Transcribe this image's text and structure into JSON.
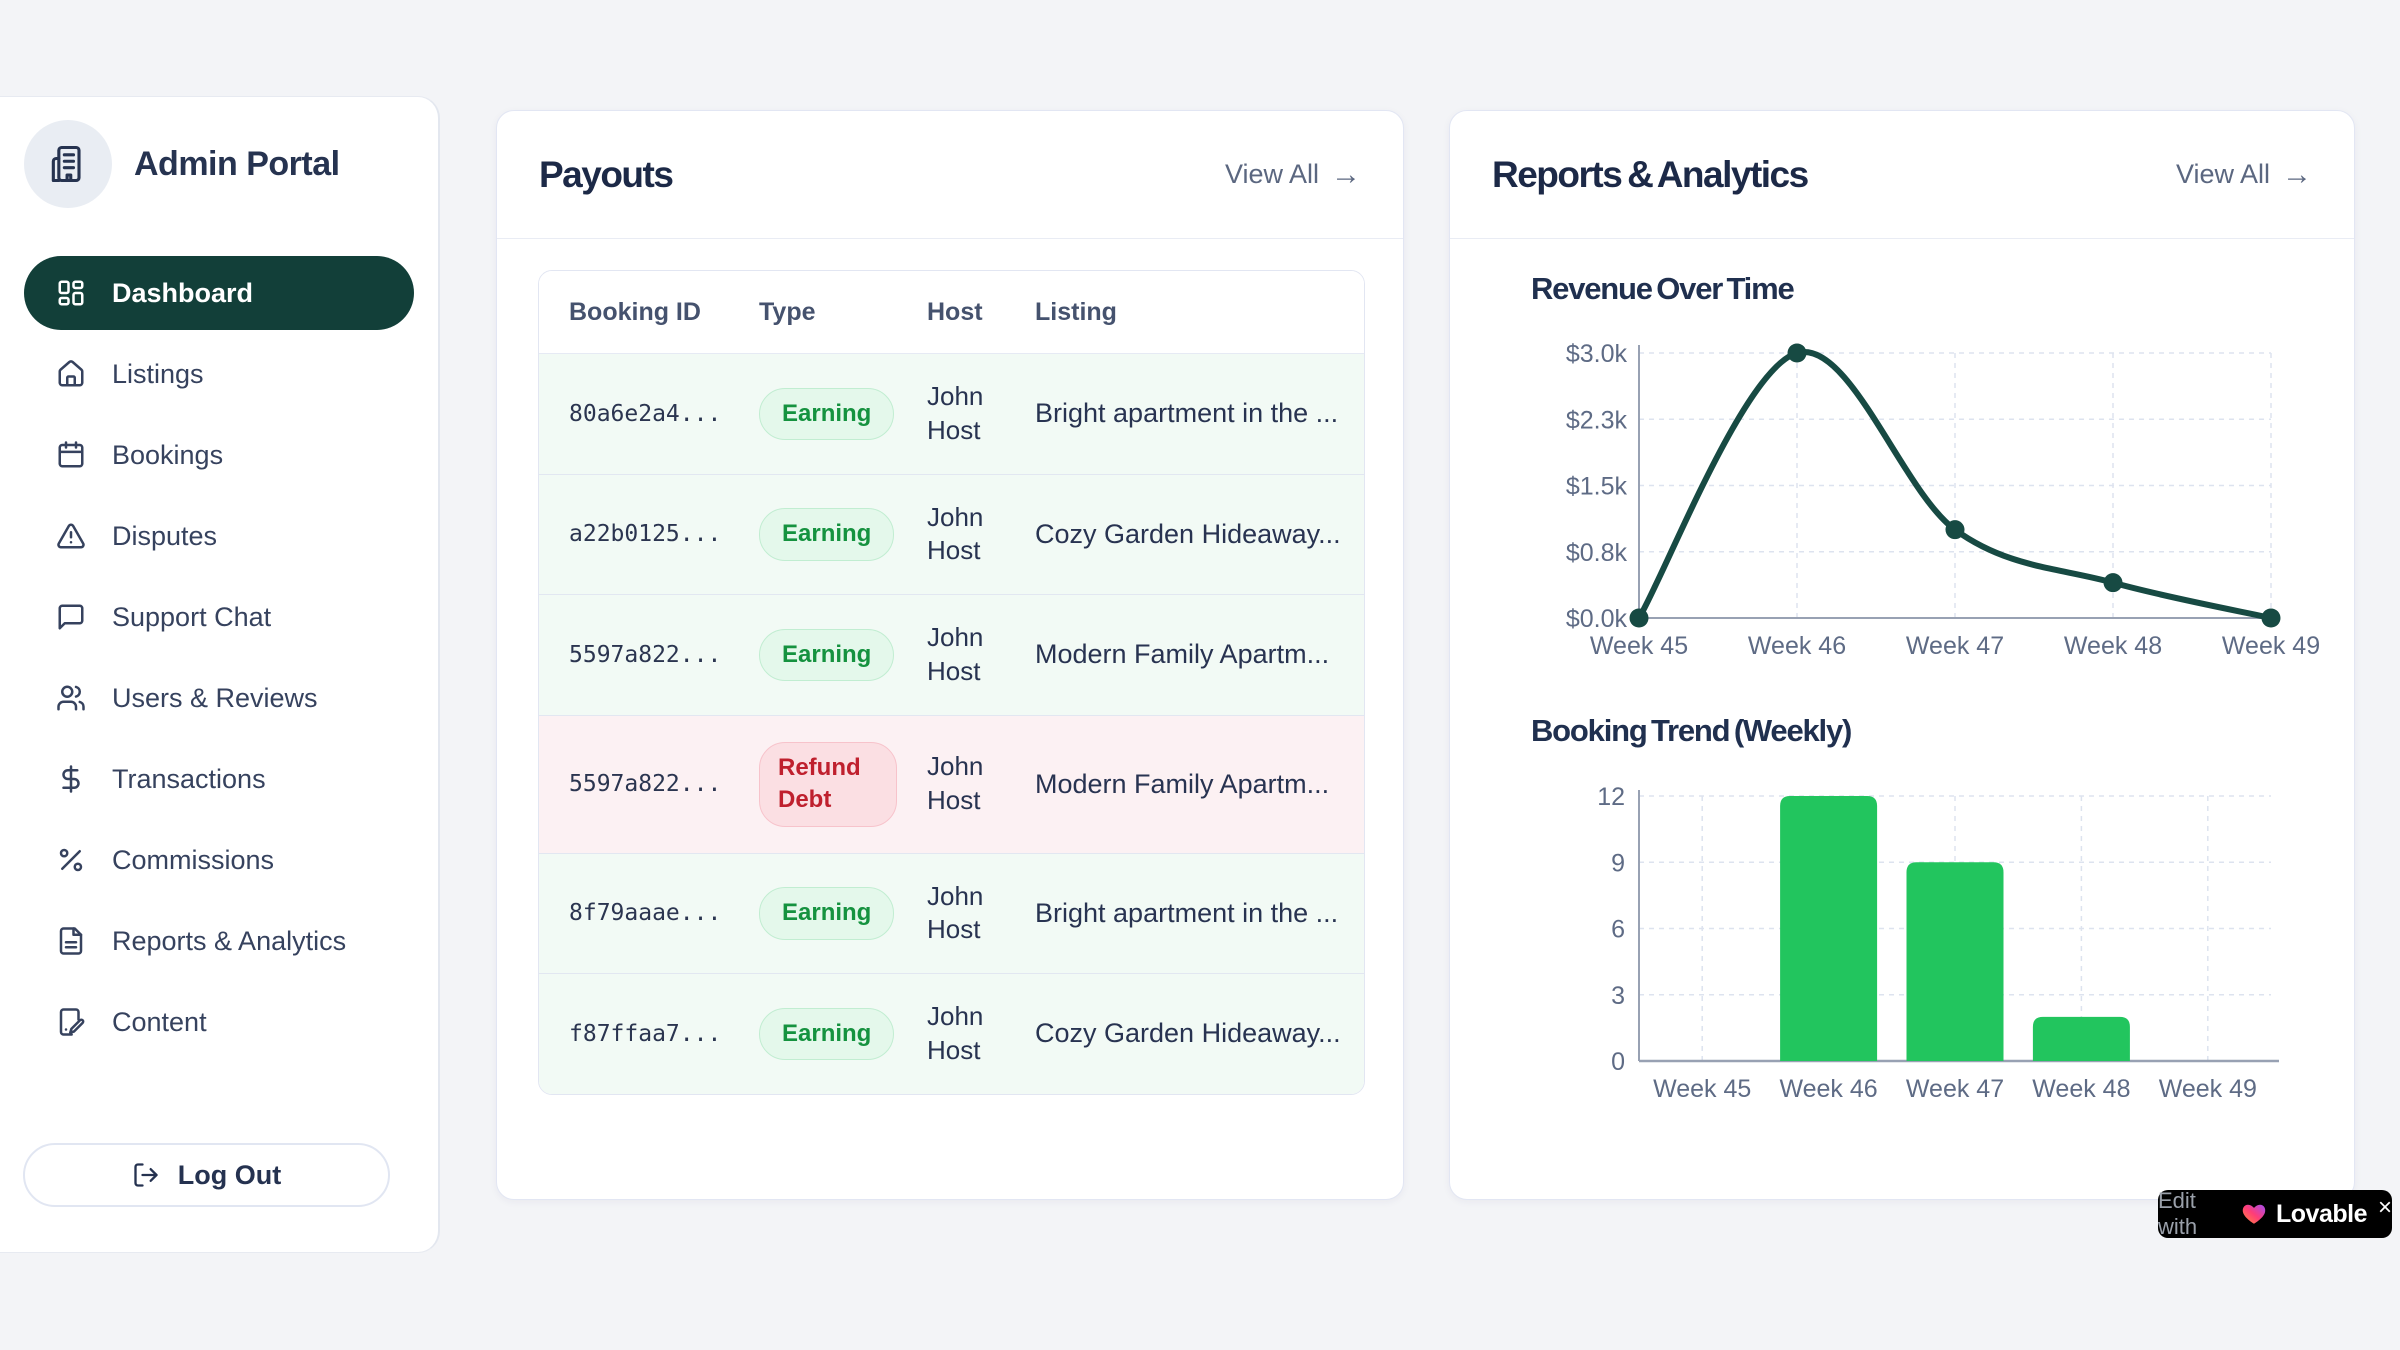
{
  "sidebar": {
    "brand": "Admin Portal",
    "items": [
      {
        "icon": "dashboard",
        "label": "Dashboard",
        "active": true
      },
      {
        "icon": "home",
        "label": "Listings"
      },
      {
        "icon": "calendar",
        "label": "Bookings"
      },
      {
        "icon": "alert-triangle",
        "label": "Disputes"
      },
      {
        "icon": "message-square",
        "label": "Support Chat"
      },
      {
        "icon": "users",
        "label": "Users & Reviews"
      },
      {
        "icon": "dollar-sign",
        "label": "Transactions"
      },
      {
        "icon": "percent",
        "label": "Commissions"
      },
      {
        "icon": "file-text",
        "label": "Reports & Analytics"
      },
      {
        "icon": "file-pen",
        "label": "Content"
      }
    ],
    "logout_label": "Log Out"
  },
  "payouts": {
    "title": "Payouts",
    "view_all_label": "View All",
    "view_all_arrow": "→",
    "table": {
      "columns": [
        "Booking ID",
        "Type",
        "Host",
        "Listing"
      ],
      "rows": [
        {
          "booking_id": "80a6e2a4...",
          "type": "Earning",
          "type_kind": "earning",
          "kind": "earning",
          "host": "John Host",
          "listing": "Bright apartment in the ..."
        },
        {
          "booking_id": "a22b0125...",
          "type": "Earning",
          "type_kind": "earning",
          "kind": "earning",
          "host": "John Host",
          "listing": "Cozy Garden Hideaway..."
        },
        {
          "booking_id": "5597a822...",
          "type": "Earning",
          "type_kind": "earning",
          "kind": "earning",
          "host": "John Host",
          "listing": "Modern Family Apartm..."
        },
        {
          "booking_id": "5597a822...",
          "type": "Refund Debt",
          "type_kind": "refund",
          "kind": "refund",
          "host": "John Host",
          "listing": "Modern Family Apartm..."
        },
        {
          "booking_id": "8f79aaae...",
          "type": "Earning",
          "type_kind": "earning",
          "kind": "earning",
          "host": "John Host",
          "listing": "Bright apartment in the ..."
        },
        {
          "booking_id": "f87ffaa7...",
          "type": "Earning",
          "type_kind": "earning",
          "kind": "earning",
          "host": "John Host",
          "listing": "Cozy Garden Hideaway..."
        }
      ]
    }
  },
  "reports": {
    "title": "Reports & Analytics",
    "view_all_label": "View All",
    "view_all_arrow": "→"
  },
  "chart_data": [
    {
      "type": "line",
      "title": "Revenue Over Time",
      "categories": [
        "Week 45",
        "Week 46",
        "Week 47",
        "Week 48",
        "Week 49"
      ],
      "values": [
        0,
        3000,
        1000,
        400,
        0
      ],
      "ylim": [
        0,
        3000
      ],
      "y_tick_labels_bottom_to_top": [
        "$0.0k",
        "$0.8k",
        "$1.5k",
        "$2.3k",
        "$3.0k"
      ],
      "grid": true,
      "legend": false,
      "line_color": "#174a43",
      "axis_color": "#98a1b3",
      "grid_color": "#dde3ef",
      "tick_color": "#5e6b85"
    },
    {
      "type": "bar",
      "title": "Booking Trend (Weekly)",
      "categories": [
        "Week 45",
        "Week 46",
        "Week 47",
        "Week 48",
        "Week 49"
      ],
      "values": [
        0,
        12,
        9,
        2,
        0
      ],
      "ylim": [
        0,
        12
      ],
      "y_ticks": [
        0,
        3,
        6,
        9,
        12
      ],
      "grid": true,
      "legend": false,
      "bar_color": "#22c55e",
      "axis_color": "#98a1b3",
      "grid_color": "#dde3ef",
      "tick_color": "#5e6b85"
    }
  ],
  "lovable_badge": {
    "edit_with": "Edit with",
    "brand": "Lovable",
    "close": "×"
  }
}
